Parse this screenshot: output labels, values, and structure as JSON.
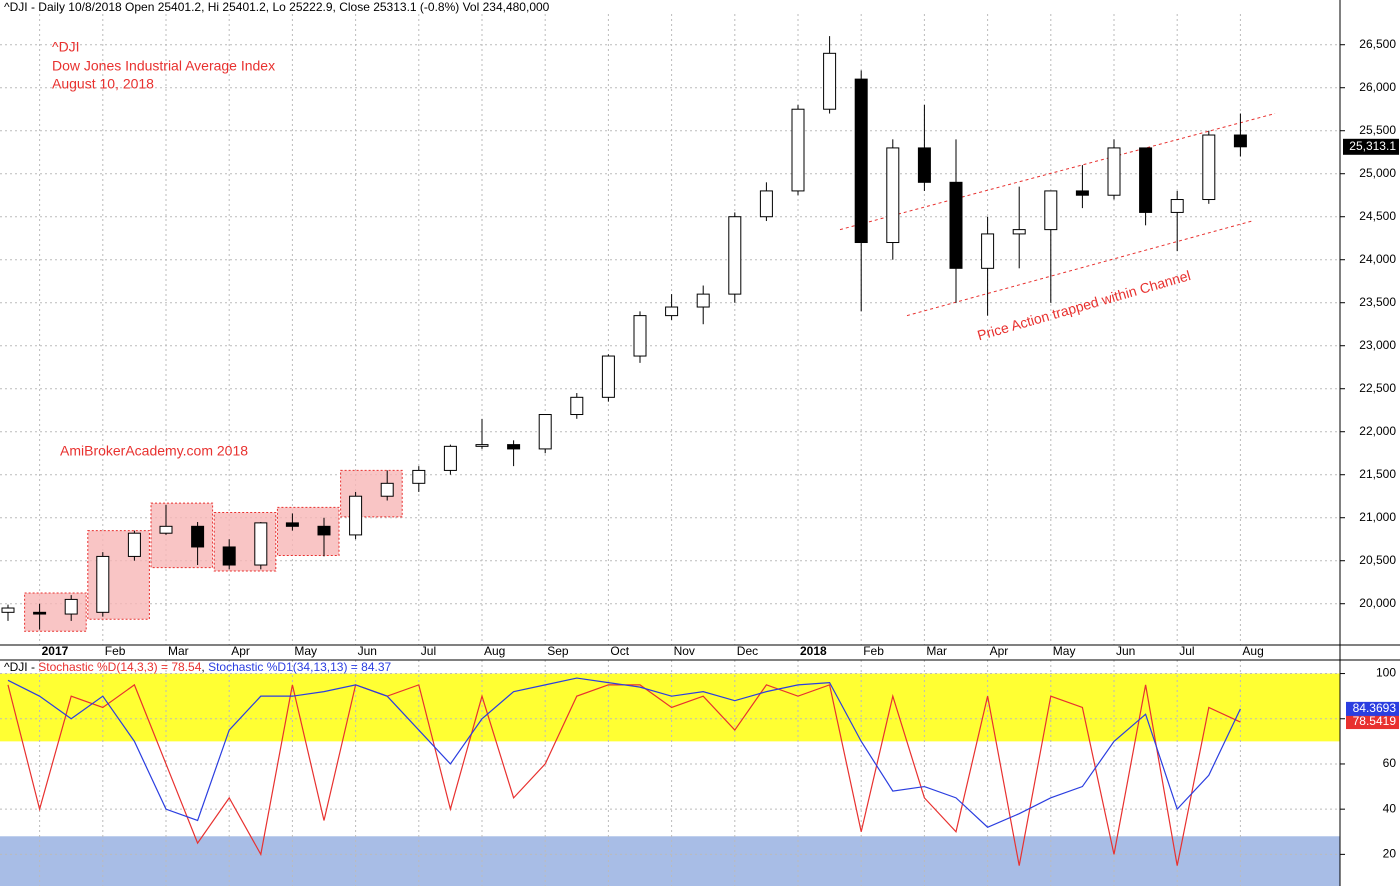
{
  "chart_data": [
    {
      "type": "candlestick",
      "title": "^DJI - Daily 10/8/2018 Open 25401.2, Hi 25401.2, Lo 25222.9, Close 25313.1 (-0.8%) Vol 234,480,000",
      "annotations": [
        "^DJI",
        "Dow Jones Industrial Average Index",
        "August 10, 2018",
        "AmiBrokerAcademy.com  2018"
      ],
      "categories": [
        null,
        "2017",
        null,
        "Feb",
        null,
        "Mar",
        null,
        "Apr",
        null,
        "May",
        null,
        "Jun",
        null,
        "Jul",
        null,
        "Aug",
        null,
        "Sep",
        null,
        "Oct",
        null,
        "Nov",
        null,
        "Dec",
        null,
        "2018",
        null,
        "Feb",
        null,
        "Mar",
        null,
        "Apr",
        null,
        "May",
        null,
        "Jun",
        null,
        "Jul",
        null,
        "Aug"
      ],
      "open": [
        19900,
        19900,
        19880,
        19900,
        20550,
        20820,
        20900,
        20660,
        20450,
        20940,
        20900,
        20800,
        21250,
        21400,
        21550,
        21830,
        21850,
        21800,
        22200,
        22400,
        22880,
        23350,
        23450,
        23600,
        24500,
        24800,
        25750,
        26100,
        24200,
        25300,
        24900,
        23900,
        24300,
        24350,
        24800,
        24750,
        25300,
        24550,
        24700,
        25450
      ],
      "high": [
        19990,
        20000,
        20100,
        20600,
        20850,
        21150,
        20950,
        20750,
        20950,
        21050,
        21000,
        21300,
        21550,
        21600,
        21850,
        22150,
        21900,
        22200,
        22450,
        22900,
        23400,
        23600,
        23700,
        24550,
        24900,
        25800,
        26600,
        26200,
        25400,
        25800,
        25400,
        24500,
        24850,
        24800,
        25100,
        25400,
        25300,
        24800,
        25500,
        25700
      ],
      "low": [
        19800,
        19700,
        19800,
        19850,
        20500,
        20800,
        20450,
        20400,
        20400,
        20850,
        20550,
        20750,
        21200,
        21300,
        21500,
        21800,
        21600,
        21750,
        22150,
        22350,
        22800,
        23300,
        23250,
        23500,
        24450,
        24750,
        25700,
        23400,
        24000,
        24800,
        23500,
        23350,
        23900,
        23500,
        24600,
        24700,
        24400,
        24100,
        24650,
        25200
      ],
      "close": [
        19950,
        19880,
        20050,
        20550,
        20820,
        20900,
        20660,
        20450,
        20940,
        20900,
        20800,
        21250,
        21400,
        21550,
        21830,
        21850,
        21800,
        22200,
        22400,
        22880,
        23350,
        23450,
        23600,
        24500,
        24800,
        25750,
        26400,
        24200,
        25300,
        24900,
        23900,
        24300,
        24350,
        24800,
        24750,
        25300,
        24550,
        24700,
        25450,
        25313.1
      ],
      "up_color": "#ffffff",
      "down_color": "#000000",
      "ylim": [
        19520,
        27020
      ],
      "yticks": [
        {
          "value": 20000,
          "label": "20,000"
        },
        {
          "value": 20500,
          "label": "20,500"
        },
        {
          "value": 21000,
          "label": "21,000"
        },
        {
          "value": 21500,
          "label": "21,500"
        },
        {
          "value": 22000,
          "label": "22,000"
        },
        {
          "value": 22500,
          "label": "22,500"
        },
        {
          "value": 23000,
          "label": "23,000"
        },
        {
          "value": 23500,
          "label": "23,500"
        },
        {
          "value": 24000,
          "label": "24,000"
        },
        {
          "value": 24500,
          "label": "24,500"
        },
        {
          "value": 25000,
          "label": "25,000"
        },
        {
          "value": 25500,
          "label": "25,500"
        },
        {
          "value": 26000,
          "label": "26,000"
        },
        {
          "value": 26500,
          "label": "26,500"
        }
      ],
      "grid": true,
      "last_price": {
        "value": 25313.1,
        "label": "25,313.1"
      },
      "month_ranges": {
        "color": "#f7b6b6",
        "high": [
          20125,
          20850,
          21170,
          21060,
          21120,
          21550
        ],
        "low": [
          19680,
          19820,
          20420,
          20380,
          20560,
          21010
        ]
      },
      "channel": {
        "label": "Price Action trapped within Channel",
        "color": "#e8312f",
        "upper": [
          24350,
          25700
        ],
        "lower": [
          23350,
          24450
        ]
      }
    },
    {
      "type": "line",
      "legend_prefix": "^DJI - ",
      "series": [
        {
          "name": "Stochastic %D(14,3,3) = 78.54",
          "color": "#e8312f",
          "last_label": {
            "value": 78.5419,
            "label": "78.5419"
          },
          "values": [
            95,
            40,
            90,
            85,
            95,
            60,
            25,
            45,
            20,
            95,
            35,
            95,
            90,
            95,
            40,
            90,
            45,
            60,
            90,
            95,
            95,
            85,
            90,
            75,
            95,
            90,
            95,
            30,
            90,
            45,
            30,
            90,
            15,
            90,
            85,
            20,
            95,
            15,
            85,
            78.54
          ]
        },
        {
          "name": "Stochastic %D1(34,13,13) = 84.37",
          "color": "#2b3ee0",
          "last_label": {
            "value": 84.3693,
            "label": "84.3693"
          },
          "values": [
            97,
            90,
            80,
            90,
            70,
            40,
            35,
            75,
            90,
            90,
            92,
            95,
            90,
            75,
            60,
            80,
            92,
            95,
            98,
            96,
            94,
            90,
            92,
            88,
            92,
            95,
            96,
            70,
            48,
            50,
            45,
            32,
            38,
            45,
            50,
            70,
            82,
            40,
            55,
            84.37
          ]
        }
      ],
      "ylim": [
        6,
        106
      ],
      "yticks": [
        20,
        40,
        60,
        80,
        100
      ],
      "grid": true,
      "bands": [
        {
          "range": [
            70,
            100
          ],
          "color": "#ffff33"
        },
        {
          "range": [
            6,
            28
          ],
          "color": "#a8bde6"
        }
      ]
    }
  ]
}
